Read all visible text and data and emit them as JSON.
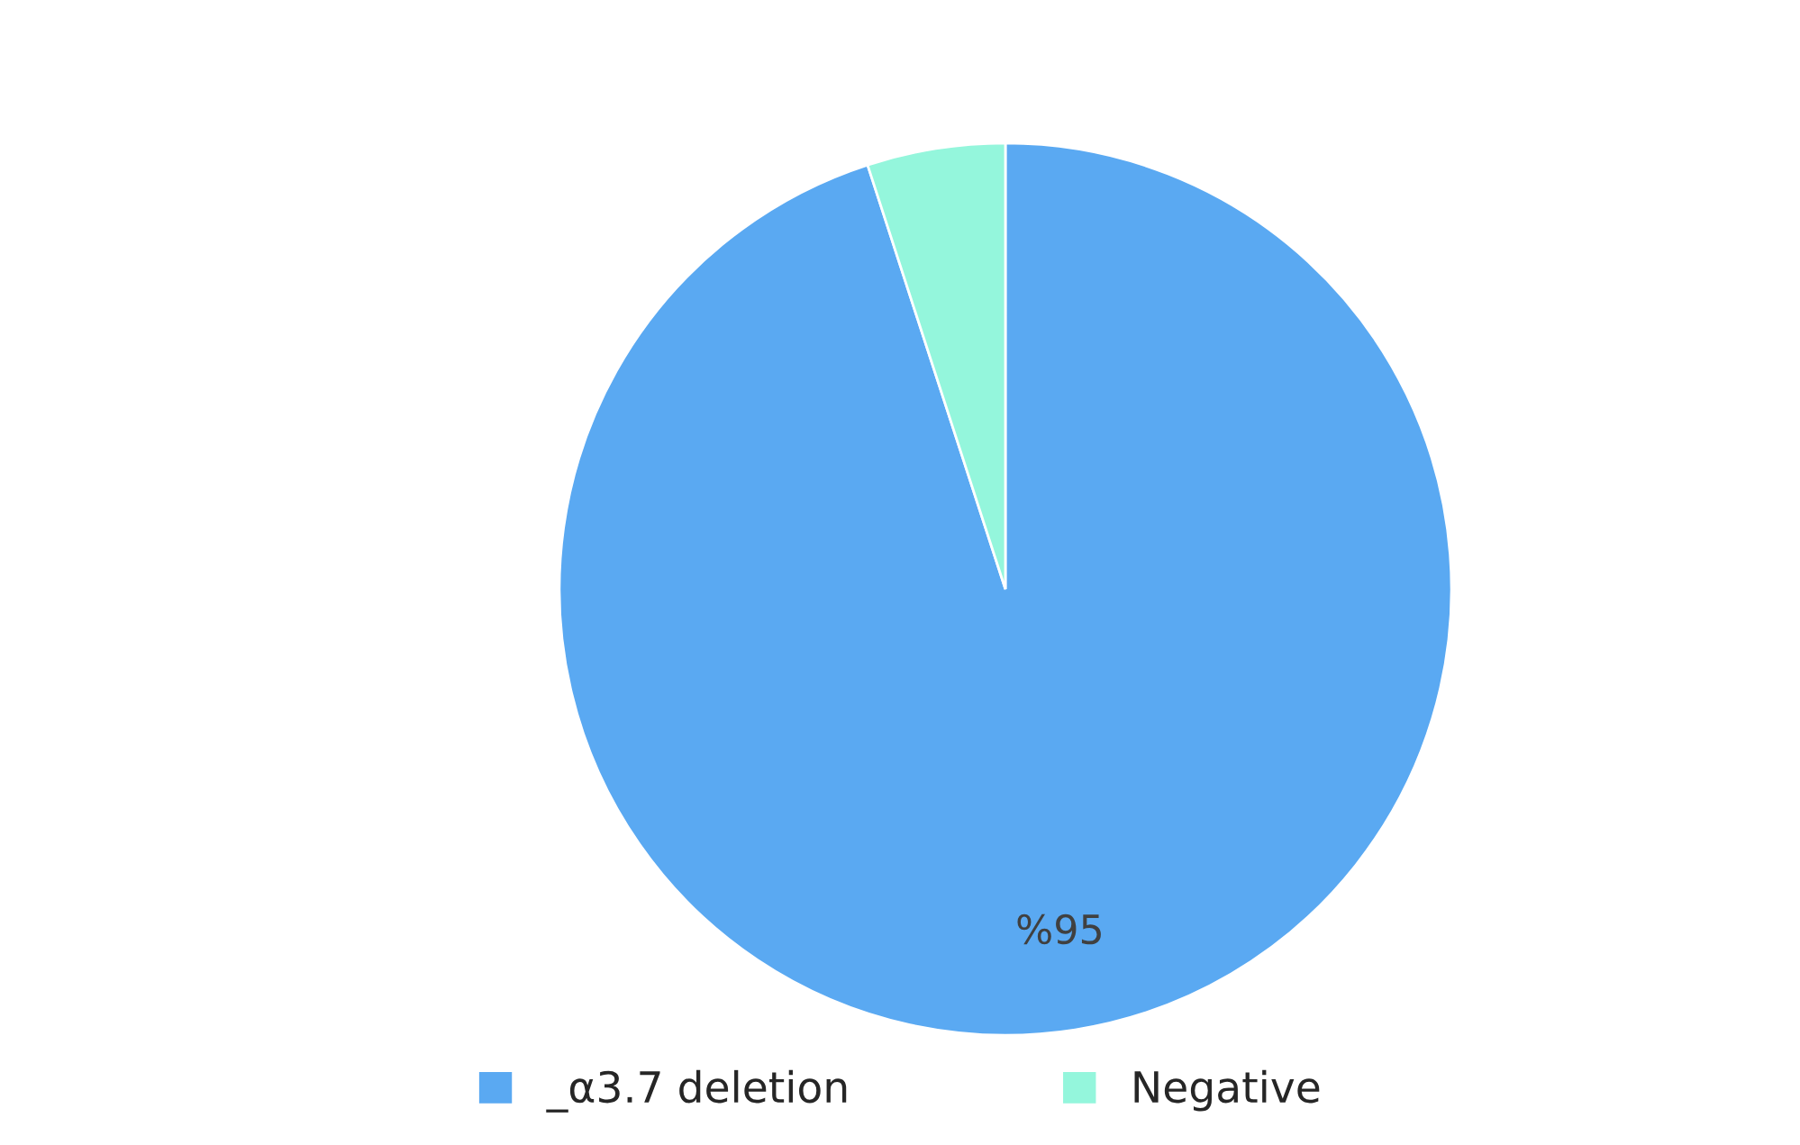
{
  "chart_data": {
    "type": "pie",
    "categories": [
      "_α3.7 deletion",
      "Negative"
    ],
    "values": [
      95,
      5
    ],
    "colors": [
      "#5aa9f2",
      "#94f6dc"
    ],
    "value_labels": [
      "%95",
      null
    ],
    "legend": "bottom"
  }
}
